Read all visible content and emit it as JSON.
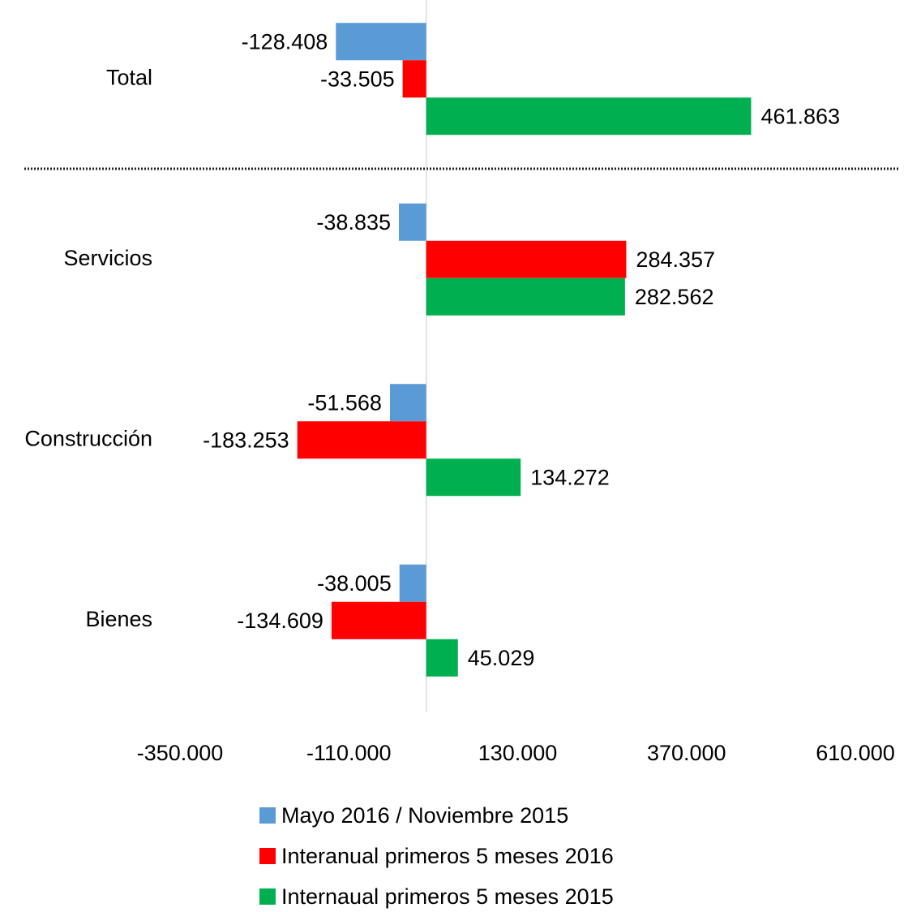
{
  "chart_data": {
    "type": "barh",
    "categories": [
      "Total",
      "Servicios",
      "Construcción",
      "Bienes"
    ],
    "series": [
      {
        "name": "Mayo 2016 / Noviembre 2015",
        "color": "#5b9bd5",
        "values": [
          -128408,
          -38835,
          -51568,
          -38005
        ],
        "value_labels": [
          "-128.408",
          "-38.835",
          "-51.568",
          "-38.005"
        ]
      },
      {
        "name": "Interanual primeros 5 meses 2016",
        "color": "#ff0000",
        "values": [
          -33505,
          284357,
          -183253,
          -134609
        ],
        "value_labels": [
          "-33.505",
          "284.357",
          "-183.253",
          "-134.609"
        ]
      },
      {
        "name": "Internaual primeros 5 meses 2015",
        "color": "#00b050",
        "values": [
          461863,
          282562,
          134272,
          45029
        ],
        "value_labels": [
          "461.863",
          "282.562",
          "134.272",
          "45.029"
        ]
      }
    ],
    "xlim": [
      -350000,
      610000
    ],
    "xticks": [
      {
        "value": -350000,
        "label": "-350.000"
      },
      {
        "value": -110000,
        "label": "-110.000"
      },
      {
        "value": 130000,
        "label": "130.000"
      },
      {
        "value": 370000,
        "label": "370.000"
      },
      {
        "value": 610000,
        "label": "610.000"
      }
    ],
    "legend": "bottom"
  }
}
